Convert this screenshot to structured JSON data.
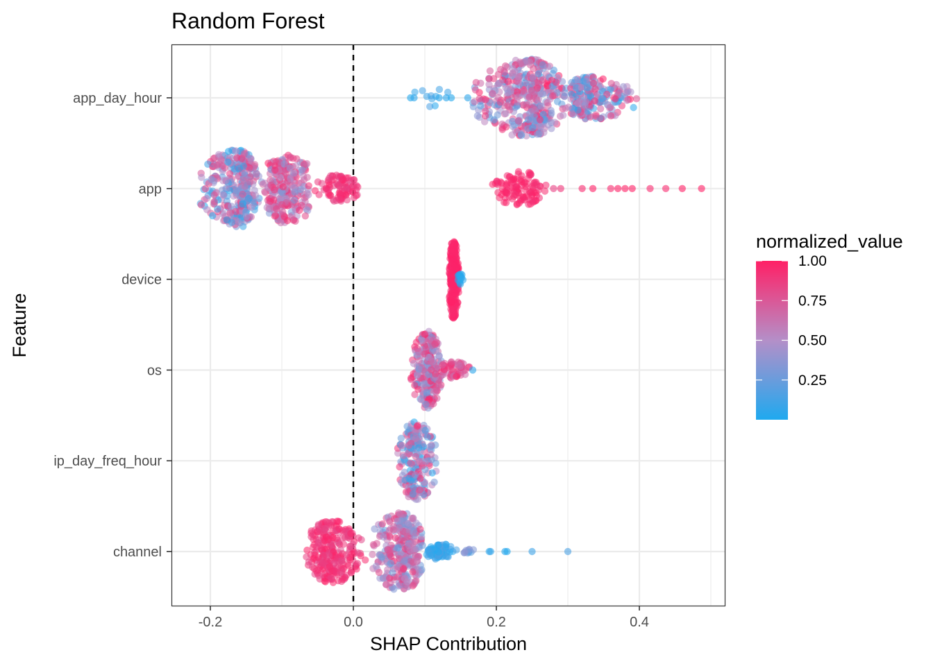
{
  "chart_data": {
    "type": "scatter",
    "subtype": "beeswarm",
    "title": "Random Forest",
    "xlabel": "SHAP Contribution",
    "ylabel": "Feature",
    "xlim": [
      -0.25,
      0.52
    ],
    "x_ticks": [
      -0.2,
      0.0,
      0.2,
      0.4
    ],
    "x_tick_labels": [
      "-0.2",
      "0.0",
      "0.2",
      "0.4"
    ],
    "reference_line": {
      "x": 0.0,
      "style": "dashed",
      "color": "#000000"
    },
    "grid": true,
    "legend_position": "right",
    "categories": [
      "app_day_hour",
      "app",
      "device",
      "os",
      "ip_day_freq_hour",
      "channel"
    ],
    "color_scale": {
      "title": "normalized_value",
      "low_color": "#1fa9ef",
      "mid_color": "#b48fc8",
      "high_color": "#ff2066",
      "breaks": [
        0.25,
        0.5,
        0.75,
        1.0
      ],
      "break_labels": [
        "0.25",
        "0.50",
        "0.75",
        "1.00"
      ]
    },
    "series": [
      {
        "feature": "app_day_hour",
        "clusters": [
          {
            "min": 0.08,
            "max": 0.14,
            "center": 0.11,
            "density": 0.25,
            "color_low": 0.0,
            "color_high": 0.15,
            "n": 10
          },
          {
            "min": 0.16,
            "max": 0.3,
            "center": 0.245,
            "density": 1.0,
            "color_low": 0.15,
            "color_high": 1.0,
            "n": 420
          },
          {
            "min": 0.29,
            "max": 0.4,
            "center": 0.33,
            "density": 0.55,
            "color_low": 0.0,
            "color_high": 1.0,
            "n": 220
          }
        ],
        "points": [
          {
            "x": 0.08,
            "c": 0.02
          },
          {
            "x": 0.085,
            "c": 0.05
          },
          {
            "x": 0.12,
            "c": 0.03
          },
          {
            "x": 0.13,
            "c": 0.04
          },
          {
            "x": 0.137,
            "c": 0.02
          },
          {
            "x": 0.16,
            "c": 0.05
          }
        ]
      },
      {
        "feature": "app",
        "clusters": [
          {
            "min": -0.22,
            "max": -0.13,
            "center": -0.16,
            "density": 1.0,
            "color_low": 0.0,
            "color_high": 0.9,
            "n": 330
          },
          {
            "min": -0.13,
            "max": -0.05,
            "center": -0.095,
            "density": 0.9,
            "color_low": 0.3,
            "color_high": 1.0,
            "n": 250
          },
          {
            "min": -0.06,
            "max": 0.01,
            "center": -0.02,
            "density": 0.35,
            "color_low": 0.8,
            "color_high": 1.0,
            "n": 90
          },
          {
            "min": 0.19,
            "max": 0.27,
            "center": 0.235,
            "density": 0.45,
            "color_low": 0.9,
            "color_high": 1.0,
            "n": 110
          }
        ],
        "points": [
          {
            "x": 0.28,
            "c": 0.85
          },
          {
            "x": 0.29,
            "c": 0.9
          },
          {
            "x": 0.32,
            "c": 0.95
          },
          {
            "x": 0.335,
            "c": 1.0
          },
          {
            "x": 0.36,
            "c": 0.95
          },
          {
            "x": 0.37,
            "c": 1.0
          },
          {
            "x": 0.38,
            "c": 1.0
          },
          {
            "x": 0.39,
            "c": 1.0
          },
          {
            "x": 0.415,
            "c": 0.95
          },
          {
            "x": 0.437,
            "c": 0.95
          },
          {
            "x": 0.46,
            "c": 1.0
          },
          {
            "x": 0.487,
            "c": 1.0
          }
        ]
      },
      {
        "feature": "device",
        "clusters": [
          {
            "min": 0.133,
            "max": 0.148,
            "center": 0.14,
            "density": 1.0,
            "color_low": 0.95,
            "color_high": 1.0,
            "n": 260
          },
          {
            "min": 0.145,
            "max": 0.155,
            "center": 0.15,
            "density": 0.15,
            "color_low": 0.0,
            "color_high": 0.05,
            "n": 14
          }
        ],
        "points": []
      },
      {
        "feature": "os",
        "clusters": [
          {
            "min": 0.08,
            "max": 0.125,
            "center": 0.105,
            "density": 1.0,
            "color_low": 0.2,
            "color_high": 1.0,
            "n": 240
          },
          {
            "min": 0.12,
            "max": 0.165,
            "center": 0.14,
            "density": 0.22,
            "color_low": 0.6,
            "color_high": 1.0,
            "n": 55
          }
        ],
        "points": [
          {
            "x": 0.167,
            "c": 0.05
          }
        ]
      },
      {
        "feature": "ip_day_freq_hour",
        "clusters": [
          {
            "min": 0.06,
            "max": 0.12,
            "center": 0.087,
            "density": 1.0,
            "color_low": 0.0,
            "color_high": 1.0,
            "n": 220
          }
        ],
        "points": []
      },
      {
        "feature": "channel",
        "clusters": [
          {
            "min": -0.07,
            "max": 0.02,
            "center": -0.03,
            "density": 0.8,
            "color_low": 0.8,
            "color_high": 1.0,
            "n": 260
          },
          {
            "min": 0.02,
            "max": 0.1,
            "center": 0.068,
            "density": 1.0,
            "color_low": 0.2,
            "color_high": 0.9,
            "n": 330
          },
          {
            "min": 0.1,
            "max": 0.145,
            "center": 0.12,
            "density": 0.2,
            "color_low": 0.0,
            "color_high": 0.2,
            "n": 70
          },
          {
            "min": 0.145,
            "max": 0.175,
            "center": 0.16,
            "density": 0.06,
            "color_low": 0.15,
            "color_high": 0.45,
            "n": 12
          }
        ],
        "points": [
          {
            "x": 0.19,
            "c": 0.05
          },
          {
            "x": 0.192,
            "c": 0.08
          },
          {
            "x": 0.212,
            "c": 0.03
          },
          {
            "x": 0.215,
            "c": 0.02
          },
          {
            "x": 0.25,
            "c": 0.1
          },
          {
            "x": 0.3,
            "c": 0.15
          }
        ]
      }
    ]
  }
}
